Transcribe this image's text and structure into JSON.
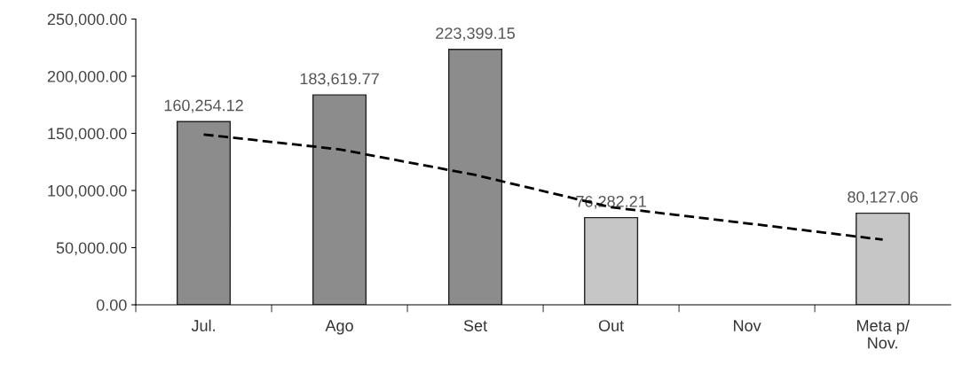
{
  "chart_data": {
    "type": "bar",
    "categories": [
      "Jul.",
      "Ago",
      "Set",
      "Out",
      "Nov",
      "Meta p/\nNov."
    ],
    "ylim": [
      0,
      250000
    ],
    "yticks": [
      {
        "value": 0,
        "label": "0.00"
      },
      {
        "value": 50000,
        "label": "50,000.00"
      },
      {
        "value": 100000,
        "label": "100,000.00"
      },
      {
        "value": 150000,
        "label": "150,000.00"
      },
      {
        "value": 200000,
        "label": "200,000.00"
      },
      {
        "value": 250000,
        "label": "250,000.00"
      }
    ],
    "grid": false,
    "series": [
      {
        "colors": [
          "#8c8c8c",
          "#8c8c8c",
          "#8c8c8c",
          "#c6c6c6",
          "#c6c6c6",
          "#c6c6c6"
        ],
        "values": [
          160254.12,
          183619.77,
          223399.15,
          76282.21,
          null,
          80127.06
        ],
        "value_labels": [
          "160,254.12",
          "183,619.77",
          "223,399.15",
          "76,282.21",
          null,
          "80,127.06"
        ]
      },
      {
        "type": "line",
        "color": "#000000",
        "line_style": "dashed",
        "values": [
          149000,
          136000,
          113600,
          85400,
          71300,
          57000
        ]
      }
    ]
  }
}
